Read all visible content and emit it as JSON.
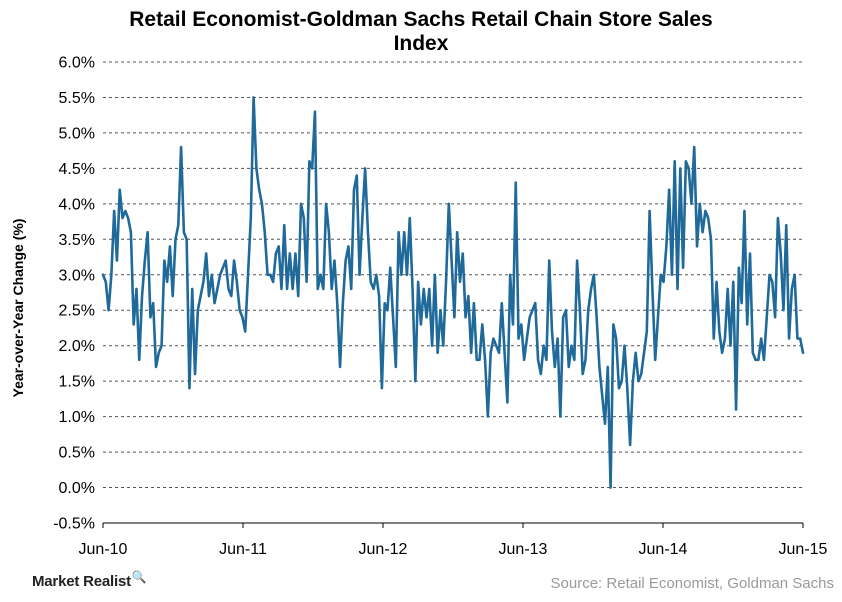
{
  "chart_data": {
    "type": "line",
    "title_lines": [
      "Retail Economist-Goldman Sachs Retail Chain Store Sales",
      "Index"
    ],
    "ylabel": "Year-over-Year Change (%)",
    "xlabel": "",
    "ylim": [
      -0.5,
      6.0
    ],
    "y_ticks": [
      "6.0%",
      "5.5%",
      "5.0%",
      "4.5%",
      "4.0%",
      "3.5%",
      "3.0%",
      "2.5%",
      "2.0%",
      "1.5%",
      "1.0%",
      "0.5%",
      "0.0%",
      "-0.5%"
    ],
    "y_tick_values": [
      6.0,
      5.5,
      5.0,
      4.5,
      4.0,
      3.5,
      3.0,
      2.5,
      2.0,
      1.5,
      1.0,
      0.5,
      0.0,
      -0.5
    ],
    "x_ticks": [
      "Jun-10",
      "Jun-11",
      "Jun-12",
      "Jun-13",
      "Jun-14",
      "Jun-15"
    ],
    "grid": "horizontal dashed",
    "line_color": "#1f6a9a",
    "series": [
      {
        "values": [
          3.0,
          2.9,
          2.5,
          3.0,
          3.9,
          3.2,
          4.2,
          3.8,
          3.9,
          3.8,
          3.6,
          2.3,
          2.8,
          1.8,
          2.7,
          3.2,
          3.6,
          2.4,
          2.6,
          1.7,
          1.9,
          2.0,
          3.2,
          2.9,
          3.4,
          2.7,
          3.5,
          3.7,
          4.8,
          3.6,
          3.5,
          1.4,
          2.8,
          1.6,
          2.5,
          2.7,
          2.9,
          3.3,
          2.7,
          3.0,
          2.6,
          2.8,
          3.0,
          3.1,
          3.2,
          2.8,
          2.7,
          3.2,
          2.9,
          2.5,
          2.4,
          2.2,
          3.0,
          3.8,
          5.5,
          4.5,
          4.2,
          4.0,
          3.6,
          3.0,
          3.0,
          2.9,
          3.3,
          3.4,
          2.8,
          3.7,
          2.8,
          3.3,
          2.8,
          3.3,
          2.7,
          4.0,
          3.8,
          2.9,
          4.6,
          4.5,
          5.3,
          2.8,
          3.0,
          2.8,
          4.0,
          3.6,
          2.8,
          3.2,
          2.6,
          1.7,
          2.6,
          3.2,
          3.4,
          2.8,
          4.2,
          4.4,
          3.0,
          3.8,
          4.5,
          3.6,
          2.9,
          2.8,
          3.0,
          2.7,
          1.4,
          2.6,
          2.5,
          3.1,
          2.4,
          1.7,
          3.6,
          3.0,
          3.6,
          3.0,
          3.8,
          2.8,
          1.5,
          2.9,
          2.3,
          2.8,
          2.4,
          2.8,
          2.0,
          3.0,
          1.9,
          2.5,
          2.0,
          2.9,
          4.0,
          3.2,
          2.4,
          3.6,
          2.9,
          3.3,
          2.4,
          2.7,
          1.9,
          2.6,
          1.8,
          1.8,
          2.3,
          1.8,
          1.0,
          1.9,
          2.1,
          2.0,
          1.9,
          2.6,
          1.9,
          1.2,
          3.0,
          2.3,
          4.3,
          2.1,
          2.3,
          1.8,
          2.1,
          2.4,
          2.5,
          2.6,
          1.8,
          1.6,
          2.0,
          1.8,
          3.2,
          2.2,
          1.7,
          2.1,
          1.0,
          2.4,
          2.5,
          1.7,
          2.0,
          1.8,
          3.2,
          2.5,
          1.6,
          1.8,
          2.5,
          2.8,
          3.0,
          2.4,
          1.7,
          1.3,
          0.9,
          1.7,
          0.0,
          2.3,
          2.1,
          1.4,
          1.5,
          2.0,
          1.4,
          0.6,
          1.5,
          1.9,
          1.5,
          1.6,
          1.9,
          2.2,
          3.9,
          2.8,
          1.8,
          2.4,
          3.0,
          2.9,
          3.4,
          4.2,
          3.0,
          4.6,
          2.8,
          4.5,
          3.1,
          4.6,
          4.5,
          4.0,
          4.8,
          3.4,
          4.0,
          3.6,
          3.9,
          3.8,
          3.5,
          2.1,
          2.9,
          2.2,
          1.9,
          2.1,
          2.8,
          2.0,
          2.9,
          1.1,
          3.1,
          2.6,
          3.9,
          2.3,
          3.3,
          1.9,
          1.8,
          1.8,
          2.1,
          1.8,
          2.4,
          3.0,
          2.9,
          2.4,
          3.8,
          3.3,
          2.5,
          3.7,
          2.1,
          2.8,
          3.0,
          2.1,
          2.1,
          1.9
        ]
      }
    ]
  },
  "branding": {
    "name": "Market Realist",
    "icon": "magnifier-chart-icon"
  },
  "source": "Source: Retail Economist, Goldman Sachs"
}
